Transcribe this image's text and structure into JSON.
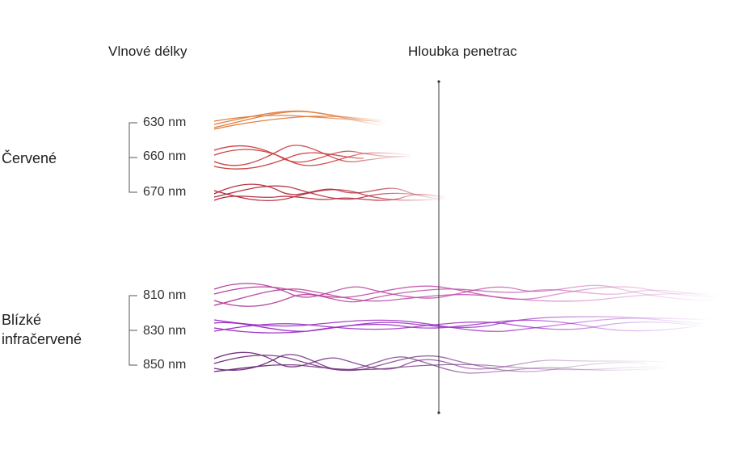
{
  "headers": {
    "wavelengths": "Vlnové délky",
    "penetration": "Hloubka penetrac"
  },
  "groups": [
    {
      "label": "Červené",
      "wavelengths": [
        "630 nm",
        "660 nm",
        "670 nm"
      ]
    },
    {
      "label_lines": [
        "Blízké",
        "infračervené"
      ],
      "wavelengths": [
        "810 nm",
        "830 nm",
        "850 nm"
      ]
    }
  ],
  "colors": {
    "630": "#e07a3a",
    "660": "#c93a3a",
    "670": "#b3283a",
    "810": "#b5409a",
    "830": "#9b2fc4",
    "850": "#6e2a7a",
    "axis": "#333333"
  }
}
